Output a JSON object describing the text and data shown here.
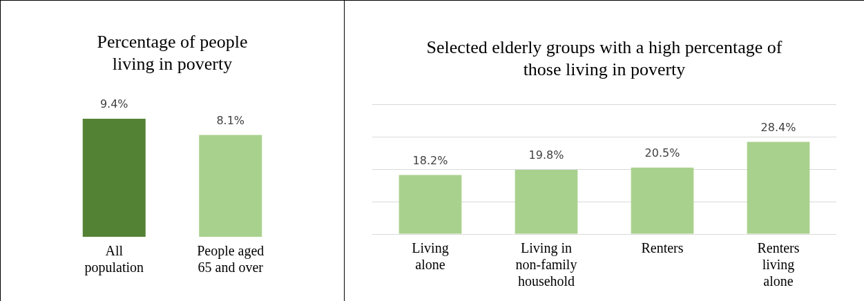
{
  "chart_data": [
    {
      "type": "bar",
      "title": "Percentage of people living in poverty",
      "categories": [
        "All population",
        "People aged 65 and over"
      ],
      "values": [
        9.4,
        8.1
      ],
      "colors": [
        "#548235",
        "#a9d18e"
      ],
      "value_labels": [
        "9.4%",
        "8.1%"
      ],
      "tick_labels": "x",
      "grid": false,
      "legend": false
    },
    {
      "type": "bar",
      "title": "Selected elderly groups with a high percentage of those living in poverty",
      "categories": [
        "Living alone",
        "Living in non-family household",
        "Renters",
        "Renters living alone"
      ],
      "values": [
        18.2,
        19.8,
        20.5,
        28.4
      ],
      "color": "#a9d18e",
      "value_labels": [
        "18.2%",
        "19.8%",
        "20.5%",
        "28.4%"
      ],
      "ylim": [
        0,
        40
      ],
      "yticks": [
        0,
        10,
        20,
        30,
        40
      ],
      "tick_labels": "x",
      "grid": "y",
      "legend": false
    }
  ]
}
